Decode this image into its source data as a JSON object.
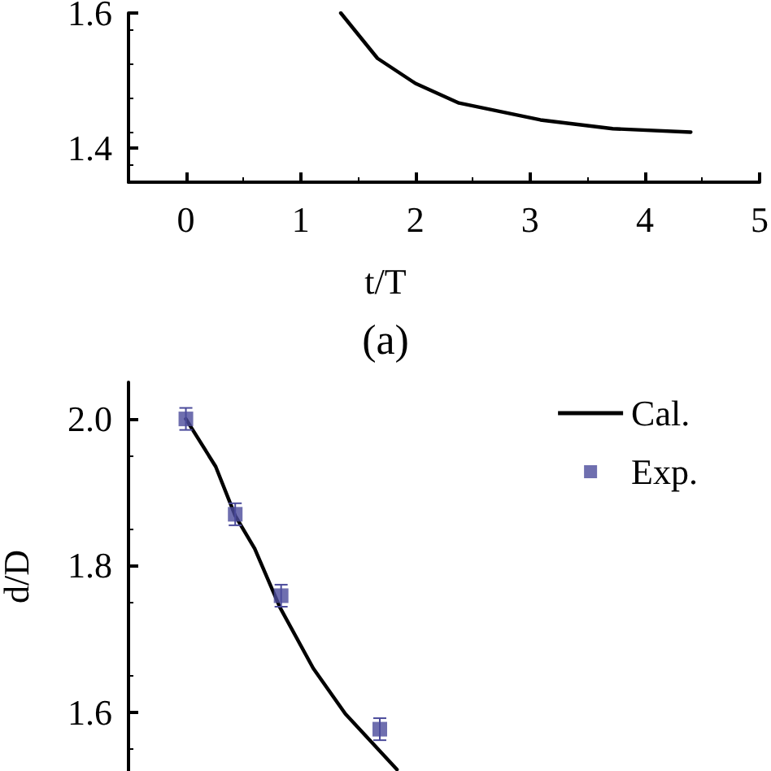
{
  "chart_data": [
    {
      "type": "line",
      "xlabel": "t/T",
      "annotations": [
        "(a)"
      ],
      "xlim": [
        -0.5,
        5
      ],
      "xticks": [
        0,
        1,
        2,
        3,
        4,
        5
      ],
      "ylim": [
        1.35,
        1.6
      ],
      "yticks": [
        1.4,
        1.6
      ],
      "grid": false,
      "legend": false,
      "marker": "none",
      "line_style": "solid",
      "series": [
        {
          "color": "#000000",
          "x": [
            1.35,
            1.67,
            2.0,
            2.38,
            3.09,
            3.72,
            4.4
          ],
          "values": [
            1.6,
            1.533,
            1.496,
            1.467,
            1.442,
            1.429,
            1.424
          ]
        }
      ]
    },
    {
      "type": "line",
      "ylabel": "d/D",
      "xlim": [
        -0.5,
        5
      ],
      "ylim": [
        1.52,
        2.05
      ],
      "yticks": [
        1.6,
        1.8,
        {
          "value": 2,
          "label": "2.0"
        }
      ],
      "tick_labels": "y",
      "grid": false,
      "legend": "top right",
      "series": [
        {
          "name": "Cal.",
          "type": "line",
          "color": "#000000",
          "marker": "none",
          "line_style": "solid",
          "x": [
            0,
            0.26,
            0.43,
            0.6,
            0.82,
            1.11,
            1.39,
            1.84
          ],
          "values": [
            2.0,
            1.935,
            1.868,
            1.823,
            1.743,
            1.66,
            1.598,
            1.522
          ]
        },
        {
          "name": "Exp.",
          "type": "scatter",
          "color": "#4b4b9b",
          "marker": "square",
          "x": [
            0,
            0.43,
            0.83,
            1.69
          ],
          "values": [
            2.0,
            1.87,
            1.759,
            1.577
          ],
          "errors": [
            0.015,
            0.015,
            0.015,
            0.015
          ]
        }
      ]
    }
  ]
}
